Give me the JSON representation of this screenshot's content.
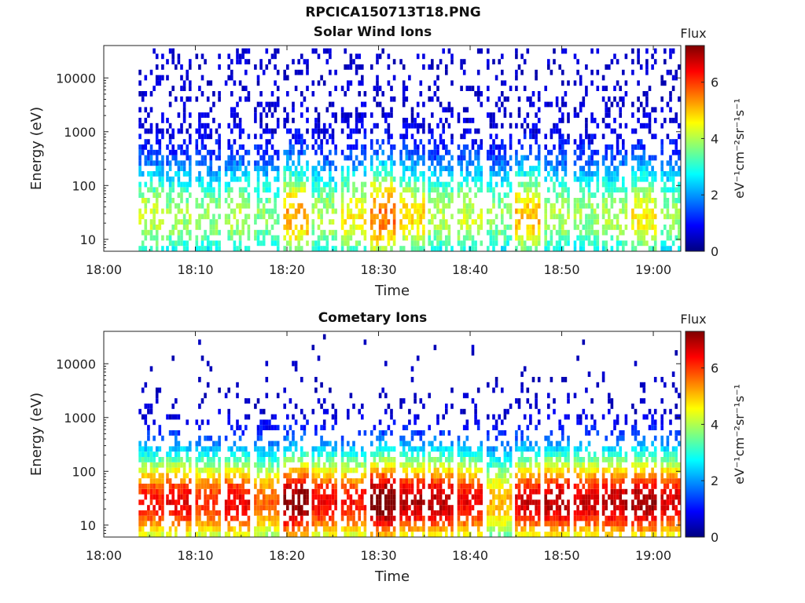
{
  "figure_title": "RPCICA150713T18.PNG",
  "colormap": [
    "#00007f",
    "#0000ff",
    "#007fff",
    "#00ffff",
    "#7fff7f",
    "#ffff00",
    "#ff7f00",
    "#ff0000",
    "#7f0000"
  ],
  "chart_data": [
    {
      "type": "heatmap",
      "title": "Solar Wind Ions",
      "xlabel": "Time",
      "ylabel": "Energy (eV)",
      "x_ticks": [
        "18:00",
        "18:10",
        "18:20",
        "18:30",
        "18:40",
        "18:50",
        "19:00"
      ],
      "x_range_minutes": [
        0,
        63
      ],
      "y_scale": "log",
      "y_ticks": [
        "10",
        "100",
        "1000",
        "10000"
      ],
      "y_range": [
        6,
        40000
      ],
      "colorbar": {
        "label_top": "Flux",
        "label": "eV⁻¹cm⁻²sr⁻¹s⁻¹",
        "ticks": [
          "0",
          "2",
          "4",
          "6"
        ],
        "range": [
          0,
          7.3
        ]
      },
      "sweep_start_minutes": [
        3.8,
        6.8,
        10.0,
        13.2,
        16.4,
        19.6,
        22.7,
        25.9,
        29.1,
        32.3,
        35.4,
        38.6,
        41.8,
        44.9,
        48.1,
        51.3,
        54.4,
        57.6,
        60.8
      ],
      "sweep_peak_flux": [
        3.8,
        3.5,
        3.4,
        3.6,
        3.3,
        4.8,
        3.6,
        4.2,
        5.2,
        4.4,
        3.6,
        3.8,
        3.4,
        4.6,
        3.6,
        3.4,
        3.6,
        4.2,
        3.4
      ],
      "peak_energy_eV": 30
    },
    {
      "type": "heatmap",
      "title": "Cometary Ions",
      "xlabel": "Time",
      "ylabel": "Energy (eV)",
      "x_ticks": [
        "18:00",
        "18:10",
        "18:20",
        "18:30",
        "18:40",
        "18:50",
        "19:00"
      ],
      "x_range_minutes": [
        0,
        63
      ],
      "y_scale": "log",
      "y_ticks": [
        "10",
        "100",
        "1000",
        "10000"
      ],
      "y_range": [
        6,
        40000
      ],
      "colorbar": {
        "label_top": "Flux",
        "label": "eV⁻¹cm⁻²sr⁻¹s⁻¹",
        "ticks": [
          "0",
          "2",
          "4",
          "6"
        ],
        "range": [
          0,
          7.3
        ]
      },
      "sweep_start_minutes": [
        3.8,
        6.8,
        10.0,
        13.2,
        16.4,
        19.6,
        22.7,
        25.9,
        29.1,
        32.3,
        35.4,
        38.6,
        41.8,
        44.9,
        48.1,
        51.3,
        54.4,
        57.6,
        60.8
      ],
      "sweep_peak_flux": [
        6.0,
        6.2,
        5.8,
        6.2,
        5.4,
        7.0,
        6.2,
        6.0,
        7.2,
        6.6,
        6.6,
        6.2,
        4.8,
        6.4,
        6.6,
        6.4,
        6.6,
        6.8,
        6.4
      ],
      "peak_energy_eV": 30
    }
  ]
}
